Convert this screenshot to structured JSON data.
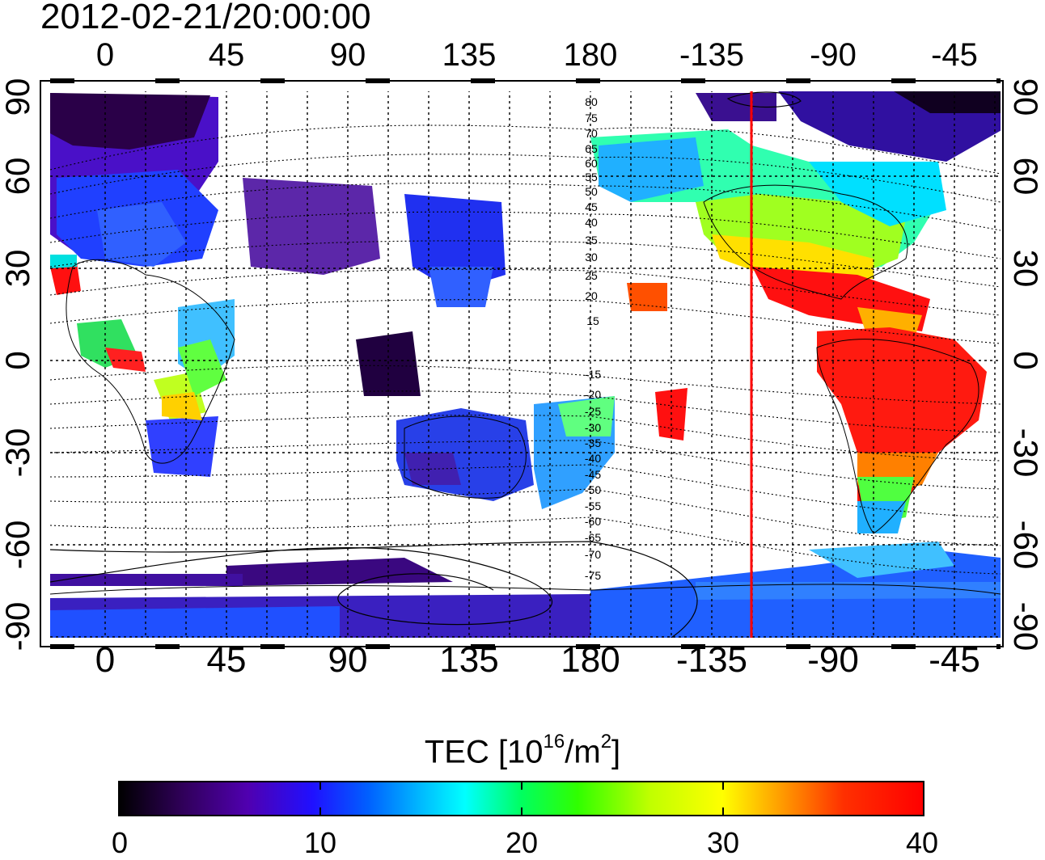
{
  "title": "2012-02-21/20:00:00",
  "map": {
    "top_ticks": [
      "0",
      "45",
      "90",
      "135",
      "180",
      "-135",
      "-90",
      "-45"
    ],
    "bottom_ticks": [
      "0",
      "45",
      "90",
      "135",
      "180",
      "-135",
      "-90",
      "-45"
    ],
    "lat_ticks_left": [
      "90",
      "60",
      "30",
      "0",
      "-30",
      "-60",
      "-90"
    ],
    "lat_ticks_right": [
      "90",
      "60",
      "30",
      "0",
      "-30",
      "-60",
      "-90"
    ],
    "terminator_color": "#ff0000",
    "terminator_lon": -120,
    "contour_labels": [
      "80",
      "75",
      "70",
      "65",
      "60",
      "55",
      "50",
      "45",
      "40",
      "35",
      "30",
      "25",
      "20",
      "15",
      "-15",
      "-20",
      "-25",
      "-30",
      "-35",
      "-40",
      "-45",
      "-50",
      "-55",
      "-60",
      "-65",
      "-70",
      "-75"
    ]
  },
  "colorbar": {
    "label_prefix": "TEC  [10",
    "label_exp": "16",
    "label_mid": "/m",
    "label_exp2": "2",
    "label_suffix": "]",
    "ticks": [
      "0",
      "10",
      "20",
      "30",
      "40"
    ],
    "min": 0,
    "max": 40,
    "colors": [
      "#000000",
      "#3a0070",
      "#5a00c0",
      "#0020ff",
      "#00a0ff",
      "#00ffff",
      "#00ff80",
      "#00ff00",
      "#c0ff00",
      "#ffff00",
      "#ffa000",
      "#ff4000",
      "#ff0000",
      "#ff0000"
    ]
  }
}
